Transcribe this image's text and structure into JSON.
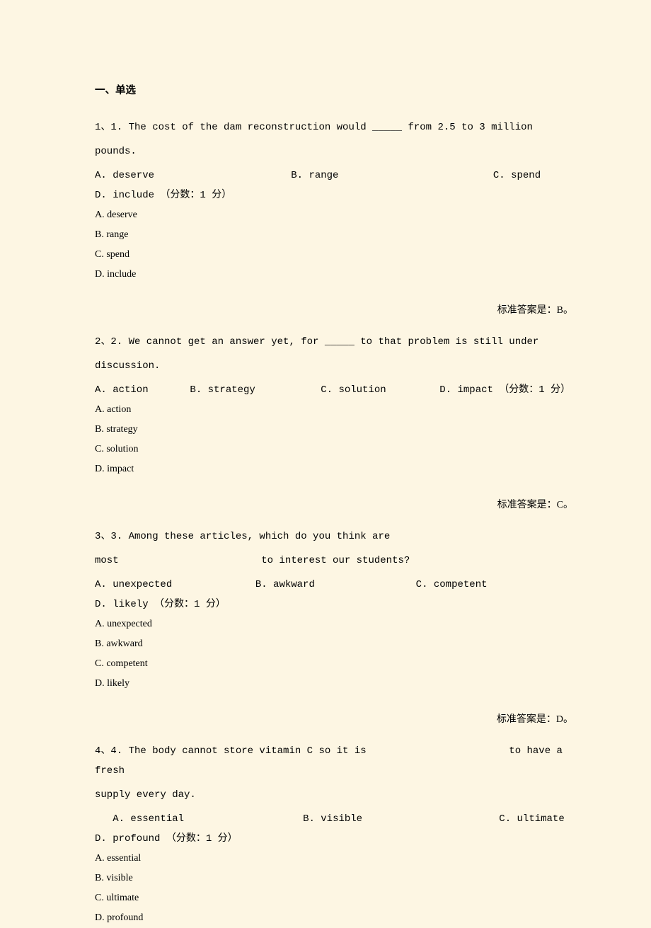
{
  "colors": {
    "background": "#fdf6e3",
    "text": "#000000"
  },
  "typography": {
    "font_family": "SimSun, 宋体, serif",
    "base_fontsize": 14,
    "header_fontsize": 14.5,
    "line_height": 2.0
  },
  "section": {
    "header": "一、单选"
  },
  "questions": [
    {
      "number": "1、",
      "qnum": "1.",
      "text_line1": "1、1. The cost of the dam reconstruction would _____ from 2.5 to 3 million",
      "text_line2": "pounds.",
      "inline_options": "A. deserve                       B. range                          C. spend                D. include （分数：1 分）",
      "options": {
        "A": "A. deserve",
        "B": "B. range",
        "C": "C. spend",
        "D": "D. include"
      },
      "answer": "标准答案是：B。"
    },
    {
      "number": "2、",
      "qnum": "2.",
      "text_line1": "2、2. We cannot get an answer yet, for _____ to that problem is still under",
      "text_line2": "discussion.",
      "inline_options": "A. action       B. strategy           C. solution         D. impact （分数：1 分）",
      "options": {
        "A": "A. action",
        "B": "B. strategy",
        "C": "C. solution",
        "D": "D. impact"
      },
      "answer": "标准答案是：C。"
    },
    {
      "number": "3、",
      "qnum": "3.",
      "text_line1": "3、3. Among these articles, which do you think are",
      "text_line2": "most                        to interest our students?",
      "inline_options": "A. unexpected              B. awkward                 C. competent             D. likely （分数：1 分）",
      "options": {
        "A": "A. unexpected",
        "B": "B. awkward",
        "C": "C. competent",
        "D": "D. likely"
      },
      "answer": "标准答案是：D。"
    },
    {
      "number": "4、",
      "qnum": "4.",
      "text_line1": "4、4. The body cannot store vitamin C so it is                        to have a fresh",
      "text_line2": "supply every day.",
      "inline_options": "   A. essential                    B. visible                       C. ultimate           D. profound （分数：1 分）",
      "options": {
        "A": "A. essential",
        "B": "B. visible",
        "C": "C. ultimate",
        "D": "D. profound"
      },
      "answer": ""
    }
  ]
}
